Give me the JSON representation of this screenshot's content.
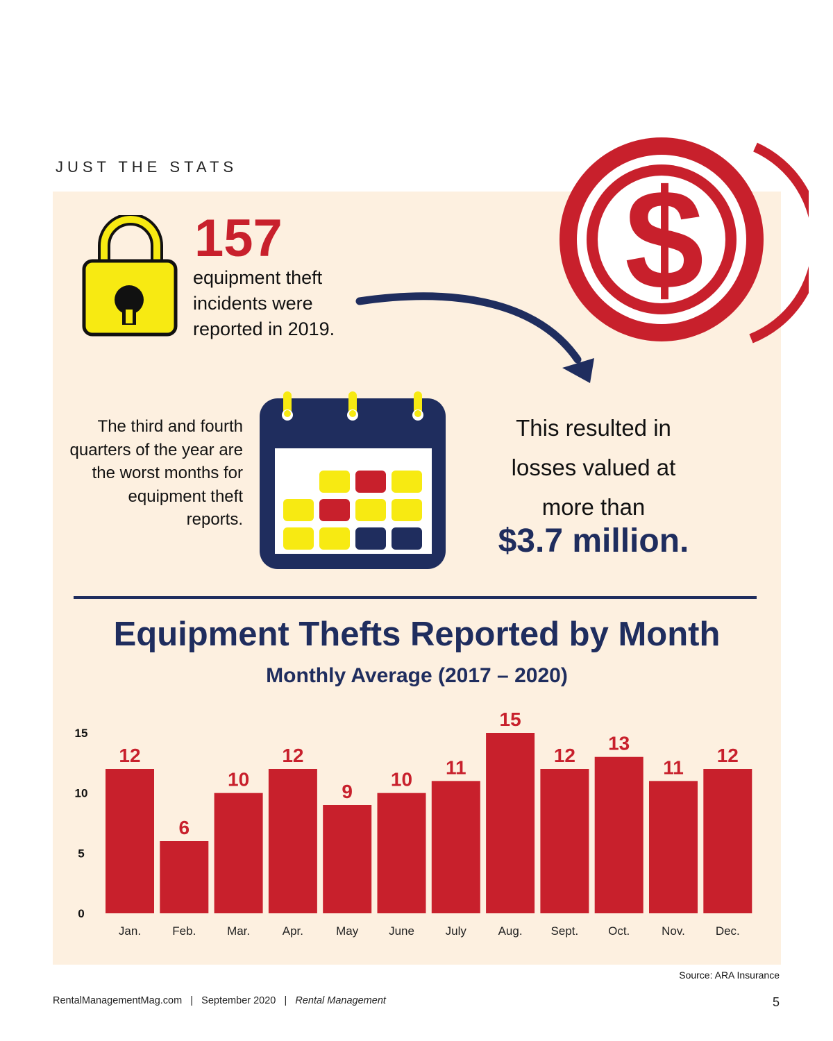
{
  "section_label": "JUST THE STATS",
  "stat": {
    "number": "157",
    "description": "equipment theft incidents were reported in 2019."
  },
  "quarters_text": "The third and fourth quarters of the year are the worst months for equipment theft reports.",
  "losses": {
    "text": "This resulted in losses valued at more than",
    "amount": "$3.7 million."
  },
  "icons": {
    "lock": "padlock-icon",
    "coin": "dollar-coin-icon",
    "calendar": "calendar-icon",
    "arrow": "curved-arrow-icon",
    "dollar_sign": "$"
  },
  "colors": {
    "red": "#c8202c",
    "navy": "#1f2d5e",
    "yellow": "#f7ea12",
    "panel": "#fdf0e0"
  },
  "chart_data": {
    "type": "bar",
    "title": "Equipment Thefts Reported by Month",
    "subtitle": "Monthly Average (2017 – 2020)",
    "categories": [
      "Jan.",
      "Feb.",
      "Mar.",
      "Apr.",
      "May",
      "June",
      "July",
      "Aug.",
      "Sept.",
      "Oct.",
      "Nov.",
      "Dec."
    ],
    "values": [
      12,
      6,
      10,
      12,
      9,
      10,
      11,
      15,
      12,
      13,
      11,
      12
    ],
    "yticks": [
      0,
      5,
      10,
      15
    ],
    "ylim": [
      0,
      15
    ],
    "grid": false,
    "legend": "none"
  },
  "source": "Source: ARA Insurance",
  "footer": {
    "site": "RentalManagementMag.com",
    "date": "September 2020",
    "publication": "Rental Management",
    "separator": "|"
  },
  "page_number": "5"
}
